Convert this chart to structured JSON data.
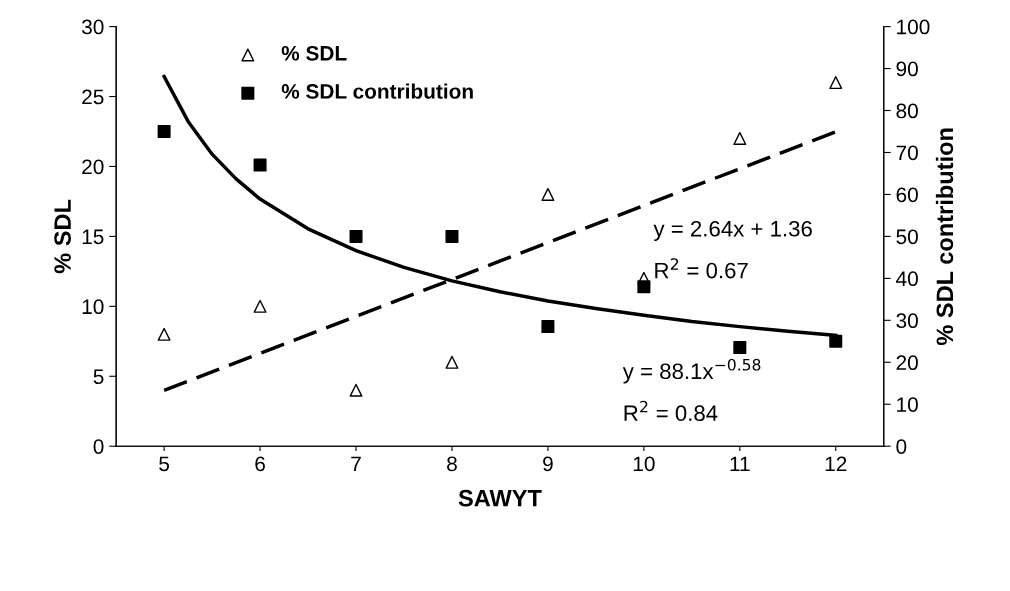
{
  "chart_data": {
    "type": "scatter",
    "xlabel": "SAWYT",
    "ylabel": "% SDL",
    "y2label": "% SDL contribution",
    "x": [
      5,
      6,
      7,
      8,
      9,
      10,
      11,
      12
    ],
    "xlim": [
      4.5,
      12.5
    ],
    "xticks": [
      5,
      6,
      7,
      8,
      9,
      10,
      11,
      12
    ],
    "ylim": [
      0,
      30
    ],
    "yticks": [
      0,
      5,
      10,
      15,
      20,
      25,
      30
    ],
    "y2lim": [
      0,
      100
    ],
    "y2ticks": [
      0,
      10,
      20,
      30,
      40,
      50,
      60,
      70,
      80,
      90,
      100
    ],
    "grid": false,
    "legend": "top left",
    "series": [
      {
        "name": "% SDL",
        "marker": "triangle",
        "color": "#000000",
        "values": [
          8,
          10,
          4,
          6,
          18,
          12,
          22,
          26
        ]
      },
      {
        "name": "% SDL contribution",
        "marker": "square",
        "color": "#000000",
        "axis": "y2",
        "values": [
          75,
          67,
          50,
          50,
          28.5,
          38,
          23.5,
          25
        ]
      },
      {
        "type": "line",
        "line_style": "dashed",
        "color": "#000000",
        "x": [
          5,
          12
        ],
        "values": [
          4.0,
          22.48
        ]
      },
      {
        "type": "line",
        "line_style": "solid",
        "color": "#000000",
        "axis": "y2",
        "x": [
          5,
          5.25,
          5.5,
          5.75,
          6,
          6.5,
          7,
          7.5,
          8,
          8.5,
          9,
          9.5,
          10,
          10.5,
          11,
          11.5,
          12
        ],
        "values": [
          88.1,
          77.4,
          69.6,
          63.7,
          58.9,
          51.8,
          46.6,
          42.6,
          39.4,
          36.8,
          34.6,
          32.8,
          31.2,
          29.7,
          28.5,
          27.4,
          26.4
        ]
      }
    ],
    "annotations": [
      "y = 2.64x + 1.36",
      "R$^{2}$ = 0.67",
      "y = 88.1x$^{−0.58}$",
      "R$^{2}$ = 0.84"
    ]
  }
}
